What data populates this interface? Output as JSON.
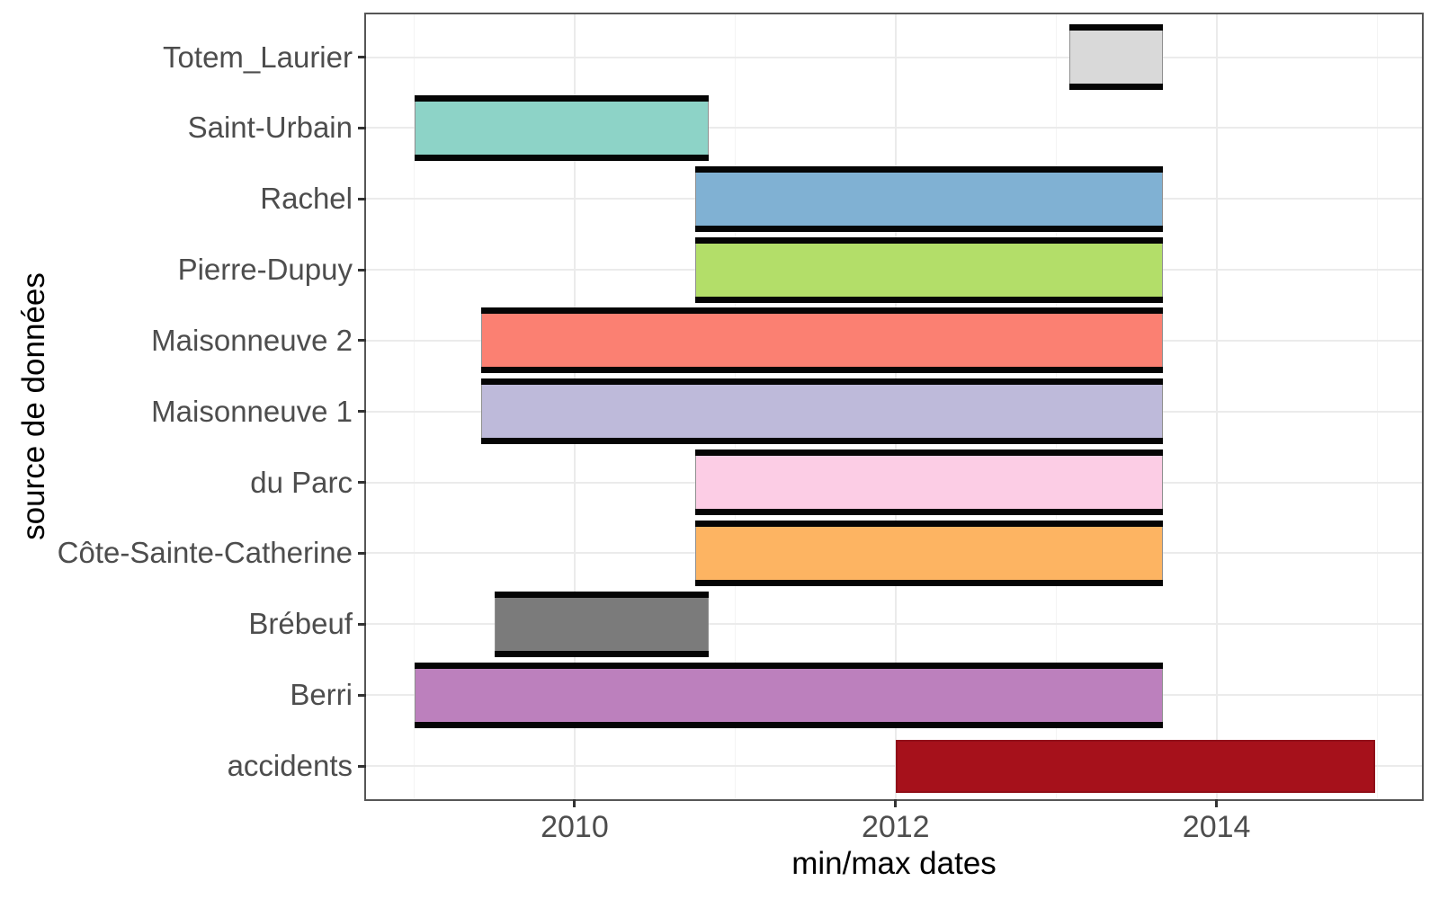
{
  "chart_data": {
    "type": "bar",
    "subtype": "horizontal_date_range",
    "title": "",
    "xlabel": "min/max dates",
    "ylabel": "source de données",
    "legend": false,
    "grid": true,
    "xlim_years": [
      2008.7,
      2015.28
    ],
    "x_ticks": [
      {
        "value": 2010,
        "label": "2010"
      },
      {
        "value": 2012,
        "label": "2012"
      },
      {
        "value": 2014,
        "label": "2014"
      }
    ],
    "x_minor_ticks": [
      2009,
      2011,
      2013,
      2015
    ],
    "categories_top_to_bottom": [
      "Totem_Laurier",
      "Saint-Urbain",
      "Rachel",
      "Pierre-Dupuy",
      "Maisonneuve 2",
      "Maisonneuve 1",
      "du Parc",
      "Côte-Sainte-Catherine",
      "Brébeuf",
      "Berri",
      "accidents"
    ],
    "bars": [
      {
        "label": "Totem_Laurier",
        "start_year": 2013.085,
        "end_year": 2013.665,
        "start_approx": "2013-02",
        "end_approx": "2013-09",
        "color": "#D9D9D9",
        "black_caps": true
      },
      {
        "label": "Saint-Urbain",
        "start_year": 2009.005,
        "end_year": 2010.835,
        "start_approx": "2009-01",
        "end_approx": "2010-11",
        "color": "#8DD3C7",
        "black_caps": true
      },
      {
        "label": "Rachel",
        "start_year": 2010.75,
        "end_year": 2013.665,
        "start_approx": "2010-10",
        "end_approx": "2013-09",
        "color": "#80B1D3",
        "black_caps": true
      },
      {
        "label": "Pierre-Dupuy",
        "start_year": 2010.75,
        "end_year": 2013.665,
        "start_approx": "2010-10",
        "end_approx": "2013-09",
        "color": "#B3DE69",
        "black_caps": true
      },
      {
        "label": "Maisonneuve 2",
        "start_year": 2009.42,
        "end_year": 2013.665,
        "start_approx": "2009-06",
        "end_approx": "2013-09",
        "color": "#FB8072",
        "black_caps": true
      },
      {
        "label": "Maisonneuve 1",
        "start_year": 2009.42,
        "end_year": 2013.665,
        "start_approx": "2009-06",
        "end_approx": "2013-09",
        "color": "#BEBADA",
        "black_caps": true
      },
      {
        "label": "du Parc",
        "start_year": 2010.75,
        "end_year": 2013.665,
        "start_approx": "2010-10",
        "end_approx": "2013-09",
        "color": "#FCCDE5",
        "black_caps": true
      },
      {
        "label": "Côte-Sainte-Catherine",
        "start_year": 2010.75,
        "end_year": 2013.665,
        "start_approx": "2010-10",
        "end_approx": "2013-09",
        "color": "#FDB462",
        "black_caps": true
      },
      {
        "label": "Brébeuf",
        "start_year": 2009.5,
        "end_year": 2010.835,
        "start_approx": "2009-07",
        "end_approx": "2010-11",
        "color": "#7B7B7B",
        "black_caps": true
      },
      {
        "label": "Berri",
        "start_year": 2009.005,
        "end_year": 2013.665,
        "start_approx": "2009-01",
        "end_approx": "2013-09",
        "color": "#BC80BD",
        "black_caps": true
      },
      {
        "label": "accidents",
        "start_year": 2012.0,
        "end_year": 2014.99,
        "start_approx": "2012-01",
        "end_approx": "2014-12",
        "color": "#A6111B",
        "black_caps": false
      }
    ]
  },
  "style": {
    "background": "#ffffff",
    "panel_border_color": "#565656",
    "grid_major_color": "#ebebeb",
    "grid_minor_color": "#f4f4f4",
    "cap_color": "#050505",
    "bar_side_border_color": "#8f8f8f",
    "accidents_border_color": "#911019",
    "tick_mark_color": "#333333",
    "tick_label_color": "#4d4d4d",
    "axis_title_color": "#000000"
  }
}
